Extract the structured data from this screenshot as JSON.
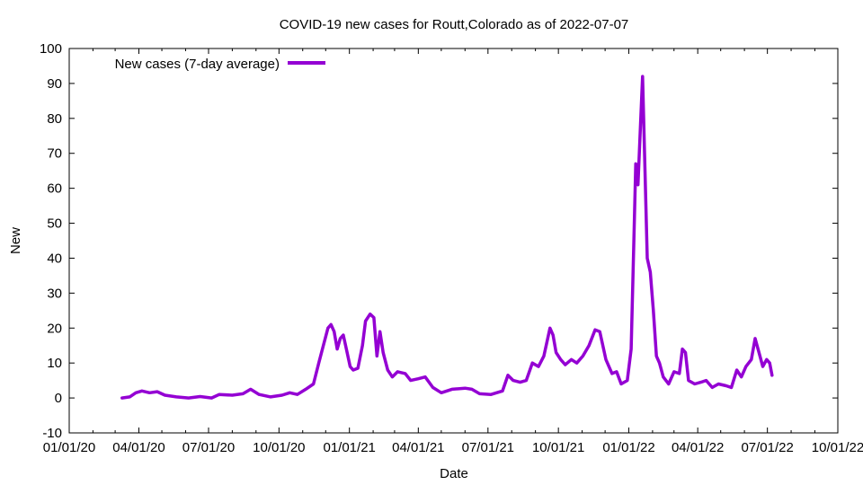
{
  "chart_data": {
    "type": "line",
    "title": "COVID-19 new cases for Routt,Colorado as of 2022-07-07",
    "xlabel": "Date",
    "ylabel": "New",
    "grid": false,
    "legend_placement": "top-left",
    "xlim": [
      "2020-01-01",
      "2022-10-01"
    ],
    "ylim": [
      -10,
      100
    ],
    "x_ticks": [
      "01/01/20",
      "04/01/20",
      "07/01/20",
      "10/01/20",
      "01/01/21",
      "04/01/21",
      "07/01/21",
      "10/01/21",
      "01/01/22",
      "04/01/22",
      "07/01/22",
      "10/01/22"
    ],
    "y_ticks": [
      -10,
      0,
      10,
      20,
      30,
      40,
      50,
      60,
      70,
      80,
      90,
      100
    ],
    "series": [
      {
        "name": "New cases (7-day average)",
        "color": "#9400d3",
        "points": [
          [
            "2020-03-10",
            0
          ],
          [
            "2020-03-20",
            0.3
          ],
          [
            "2020-03-28",
            1.5
          ],
          [
            "2020-04-05",
            2
          ],
          [
            "2020-04-15",
            1.5
          ],
          [
            "2020-04-25",
            1.8
          ],
          [
            "2020-05-05",
            0.8
          ],
          [
            "2020-05-20",
            0.3
          ],
          [
            "2020-06-05",
            0
          ],
          [
            "2020-06-20",
            0.4
          ],
          [
            "2020-07-05",
            0
          ],
          [
            "2020-07-15",
            1
          ],
          [
            "2020-08-01",
            0.8
          ],
          [
            "2020-08-15",
            1.2
          ],
          [
            "2020-08-25",
            2.5
          ],
          [
            "2020-09-05",
            1
          ],
          [
            "2020-09-20",
            0.3
          ],
          [
            "2020-10-05",
            0.8
          ],
          [
            "2020-10-15",
            1.5
          ],
          [
            "2020-10-25",
            1
          ],
          [
            "2020-11-05",
            2.5
          ],
          [
            "2020-11-15",
            4
          ],
          [
            "2020-11-22",
            10
          ],
          [
            "2020-11-28",
            15
          ],
          [
            "2020-12-04",
            20
          ],
          [
            "2020-12-08",
            21
          ],
          [
            "2020-12-12",
            19
          ],
          [
            "2020-12-16",
            14
          ],
          [
            "2020-12-20",
            17
          ],
          [
            "2020-12-24",
            18
          ],
          [
            "2020-12-28",
            14
          ],
          [
            "2021-01-02",
            9
          ],
          [
            "2021-01-06",
            8
          ],
          [
            "2021-01-12",
            8.5
          ],
          [
            "2021-01-18",
            15
          ],
          [
            "2021-01-22",
            22
          ],
          [
            "2021-01-28",
            24
          ],
          [
            "2021-02-02",
            23
          ],
          [
            "2021-02-06",
            12
          ],
          [
            "2021-02-10",
            19
          ],
          [
            "2021-02-14",
            13
          ],
          [
            "2021-02-20",
            8
          ],
          [
            "2021-02-26",
            6
          ],
          [
            "2021-03-05",
            7.5
          ],
          [
            "2021-03-15",
            7
          ],
          [
            "2021-03-22",
            5
          ],
          [
            "2021-04-01",
            5.5
          ],
          [
            "2021-04-10",
            6
          ],
          [
            "2021-04-20",
            3
          ],
          [
            "2021-05-01",
            1.5
          ],
          [
            "2021-05-15",
            2.5
          ],
          [
            "2021-06-01",
            2.8
          ],
          [
            "2021-06-10",
            2.5
          ],
          [
            "2021-06-20",
            1.2
          ],
          [
            "2021-07-05",
            1
          ],
          [
            "2021-07-20",
            2
          ],
          [
            "2021-07-27",
            6.5
          ],
          [
            "2021-08-03",
            5
          ],
          [
            "2021-08-12",
            4.5
          ],
          [
            "2021-08-20",
            5
          ],
          [
            "2021-08-28",
            10
          ],
          [
            "2021-09-05",
            9
          ],
          [
            "2021-09-12",
            12
          ],
          [
            "2021-09-20",
            20
          ],
          [
            "2021-09-24",
            18
          ],
          [
            "2021-09-28",
            13
          ],
          [
            "2021-10-04",
            11
          ],
          [
            "2021-10-10",
            9.5
          ],
          [
            "2021-10-18",
            11
          ],
          [
            "2021-10-25",
            10
          ],
          [
            "2021-11-02",
            12
          ],
          [
            "2021-11-10",
            15
          ],
          [
            "2021-11-18",
            19.5
          ],
          [
            "2021-11-24",
            19
          ],
          [
            "2021-12-02",
            11
          ],
          [
            "2021-12-10",
            7
          ],
          [
            "2021-12-16",
            7.5
          ],
          [
            "2021-12-22",
            4
          ],
          [
            "2021-12-30",
            5
          ],
          [
            "2022-01-04",
            14
          ],
          [
            "2022-01-08",
            49
          ],
          [
            "2022-01-10",
            67
          ],
          [
            "2022-01-13",
            61
          ],
          [
            "2022-01-16",
            77
          ],
          [
            "2022-01-19",
            92
          ],
          [
            "2022-01-22",
            66
          ],
          [
            "2022-01-25",
            40
          ],
          [
            "2022-01-29",
            36
          ],
          [
            "2022-02-02",
            25
          ],
          [
            "2022-02-06",
            12
          ],
          [
            "2022-02-10",
            10
          ],
          [
            "2022-02-15",
            6
          ],
          [
            "2022-02-22",
            4
          ],
          [
            "2022-03-01",
            7.5
          ],
          [
            "2022-03-08",
            7
          ],
          [
            "2022-03-12",
            14
          ],
          [
            "2022-03-16",
            13
          ],
          [
            "2022-03-20",
            5
          ],
          [
            "2022-03-28",
            4
          ],
          [
            "2022-04-05",
            4.5
          ],
          [
            "2022-04-12",
            5
          ],
          [
            "2022-04-20",
            3
          ],
          [
            "2022-04-28",
            4
          ],
          [
            "2022-05-08",
            3.5
          ],
          [
            "2022-05-15",
            3
          ],
          [
            "2022-05-22",
            8
          ],
          [
            "2022-05-28",
            6
          ],
          [
            "2022-06-03",
            9
          ],
          [
            "2022-06-10",
            11
          ],
          [
            "2022-06-15",
            17
          ],
          [
            "2022-06-20",
            13
          ],
          [
            "2022-06-25",
            9
          ],
          [
            "2022-06-30",
            11
          ],
          [
            "2022-07-04",
            10
          ],
          [
            "2022-07-07",
            6.5
          ]
        ]
      }
    ]
  }
}
